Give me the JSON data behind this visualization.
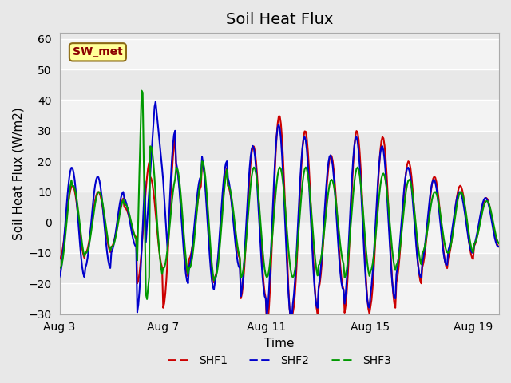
{
  "title": "Soil Heat Flux",
  "xlabel": "Time",
  "ylabel": "Soil Heat Flux (W/m2)",
  "ylim": [
    -30,
    62
  ],
  "xlim_days": [
    0,
    17
  ],
  "tick_positions": [
    0,
    4,
    8,
    12,
    16
  ],
  "tick_labels": [
    "Aug 3",
    "Aug 7",
    "Aug 11",
    "Aug 15",
    "Aug 19"
  ],
  "annotation_text": "SW_met",
  "annotation_color": "#8B0000",
  "annotation_bg": "#FFFF99",
  "annotation_border": "#8B6914",
  "series": [
    "SHF1",
    "SHF2",
    "SHF3"
  ],
  "colors": [
    "#CC0000",
    "#0000CC",
    "#009900"
  ],
  "legend_dashes": true,
  "background_color": "#E8E8E8",
  "plot_bg": "#E8E8E8",
  "white_band_color": "#F5F5F5",
  "grid_color": "#FFFFFF",
  "title_fontsize": 14,
  "axis_label_fontsize": 11,
  "yticks": [
    -30,
    -20,
    -10,
    0,
    10,
    20,
    30,
    40,
    50,
    60
  ]
}
